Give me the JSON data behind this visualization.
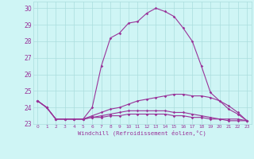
{
  "xlabel": "Windchill (Refroidissement éolien,°C)",
  "bg_color": "#cff5f5",
  "grid_color": "#aadddd",
  "line_color": "#993399",
  "x": [
    0,
    1,
    2,
    3,
    4,
    5,
    6,
    7,
    8,
    9,
    10,
    11,
    12,
    13,
    14,
    15,
    16,
    17,
    18,
    19,
    20,
    21,
    22,
    23
  ],
  "series": [
    [
      24.4,
      24.0,
      23.3,
      23.3,
      23.3,
      23.3,
      24.0,
      26.5,
      28.2,
      28.5,
      29.1,
      29.2,
      29.7,
      30.0,
      29.8,
      29.5,
      28.8,
      28.0,
      26.5,
      24.9,
      24.4,
      23.9,
      23.6,
      23.2
    ],
    [
      24.4,
      24.0,
      23.3,
      23.3,
      23.3,
      23.3,
      23.5,
      23.7,
      23.9,
      24.0,
      24.2,
      24.4,
      24.5,
      24.6,
      24.7,
      24.8,
      24.8,
      24.7,
      24.7,
      24.6,
      24.4,
      24.1,
      23.7,
      23.2
    ],
    [
      24.4,
      24.0,
      23.3,
      23.3,
      23.3,
      23.3,
      23.4,
      23.5,
      23.6,
      23.7,
      23.8,
      23.8,
      23.8,
      23.8,
      23.8,
      23.7,
      23.7,
      23.6,
      23.5,
      23.4,
      23.3,
      23.3,
      23.3,
      23.2
    ],
    [
      24.4,
      24.0,
      23.3,
      23.3,
      23.3,
      23.3,
      23.4,
      23.4,
      23.5,
      23.5,
      23.6,
      23.6,
      23.6,
      23.6,
      23.6,
      23.5,
      23.5,
      23.4,
      23.4,
      23.3,
      23.3,
      23.2,
      23.2,
      23.2
    ]
  ],
  "ylim": [
    23.0,
    30.4
  ],
  "yticks": [
    23,
    24,
    25,
    26,
    27,
    28,
    29,
    30
  ],
  "xticks": [
    0,
    1,
    2,
    3,
    4,
    5,
    6,
    7,
    8,
    9,
    10,
    11,
    12,
    13,
    14,
    15,
    16,
    17,
    18,
    19,
    20,
    21,
    22,
    23
  ],
  "xtick_labels": [
    "0",
    "1",
    "2",
    "3",
    "4",
    "5",
    "6",
    "7",
    "8",
    "9",
    "10",
    "11",
    "12",
    "13",
    "14",
    "15",
    "16",
    "17",
    "18",
    "19",
    "20",
    "21",
    "22",
    "23"
  ]
}
